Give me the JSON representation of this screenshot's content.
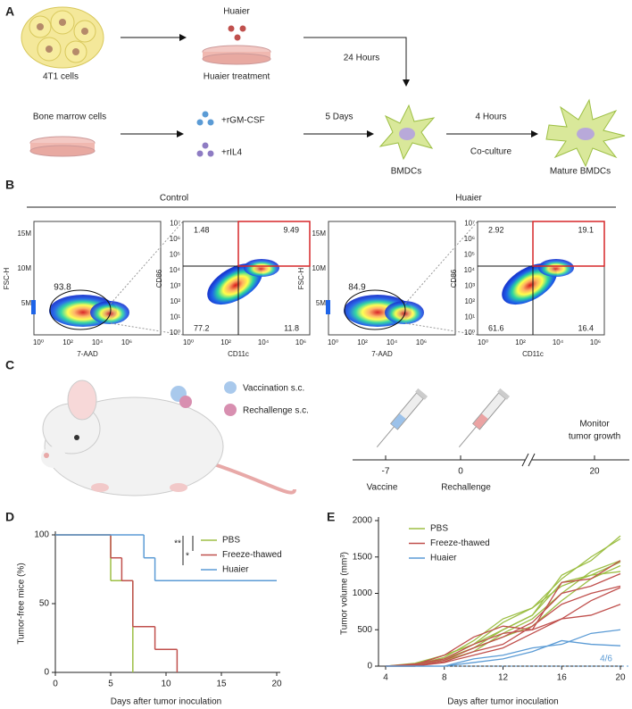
{
  "panel_a": {
    "label": "A",
    "cells": "4T1 cells",
    "drug": "Huaier",
    "treatment": "Huaier treatment",
    "time1": "24 Hours",
    "bone_marrow": "Bone marrow cells",
    "cytokine1": "+rGM-CSF",
    "cytokine2": "+rIL4",
    "time2": "5 Days",
    "bmdc": "BMDCs",
    "time3": "4 Hours",
    "coculture": "Co-culture",
    "mature": "Mature BMDCs"
  },
  "panel_b": {
    "label": "B",
    "groups": [
      {
        "name": "Control",
        "gate": 93.8,
        "quadrants": [
          1.48,
          9.49,
          77.2,
          11.8
        ]
      },
      {
        "name": "Huaier",
        "gate": 84.9,
        "quadrants": [
          2.92,
          19.1,
          61.6,
          16.4
        ]
      }
    ],
    "fsc": {
      "label": "FSC-H",
      "ticks": [
        "15M",
        "10M",
        "5M"
      ]
    },
    "aad": {
      "label": "7-AAD",
      "ticks": [
        "10⁰",
        "10²",
        "10⁴",
        "10⁶"
      ]
    },
    "cd86": {
      "label": "CD86",
      "ticks": [
        "10⁰",
        "10¹",
        "10²",
        "10³",
        "10⁴",
        "10⁵",
        "10⁶",
        "10⁷"
      ]
    },
    "cd11c": {
      "label": "CD11c",
      "ticks": [
        "10⁰",
        "10²",
        "10⁴",
        "10⁶"
      ]
    }
  },
  "panel_c": {
    "label": "C",
    "legend": [
      "Vaccination s.c.",
      "Rechallenge s.c."
    ],
    "timeline": [
      -7,
      0,
      20
    ],
    "events": [
      "Vaccine",
      "Rechallenge"
    ],
    "monitor": [
      "Monitor",
      "tumor growth"
    ]
  },
  "chart_data": [
    {
      "panel": "D",
      "type": "step",
      "xlabel": "Days after tumor inoculation",
      "ylabel": "Tumor-free mice (%)",
      "xlim": [
        0,
        20
      ],
      "ylim": [
        0,
        100
      ],
      "xticks": [
        0,
        5,
        10,
        15,
        20
      ],
      "yticks": [
        0,
        50,
        100
      ],
      "significance": [
        "**",
        "*"
      ],
      "series": [
        {
          "name": "PBS",
          "color": "#9dbf45",
          "x": [
            0,
            5,
            7
          ],
          "values": [
            100,
            66.7,
            0
          ]
        },
        {
          "name": "Freeze-thawed",
          "color": "#c0504d",
          "x": [
            0,
            5,
            6,
            7,
            9,
            11
          ],
          "values": [
            100,
            83.3,
            66.7,
            33.3,
            16.7,
            0
          ]
        },
        {
          "name": "Huaier",
          "color": "#5b9bd5",
          "x": [
            0,
            8,
            9,
            20
          ],
          "values": [
            100,
            83.3,
            66.7,
            66.7
          ]
        }
      ]
    },
    {
      "panel": "E",
      "type": "line",
      "xlabel": "Days after tumor inoculation",
      "ylabel": "Tumor volume (mm³)",
      "xlim": [
        4,
        20
      ],
      "ylim": [
        0,
        2000
      ],
      "xticks": [
        4,
        8,
        12,
        16,
        20
      ],
      "yticks": [
        0,
        500,
        1000,
        1500,
        2000
      ],
      "annotation": "4/6",
      "x": [
        4,
        6,
        8,
        10,
        12,
        14,
        16,
        18,
        20
      ],
      "series": [
        {
          "name": "PBS",
          "color": "#9dbf45",
          "lines": [
            [
              0,
              20,
              100,
              250,
              500,
              700,
              1250,
              1450,
              1790
            ],
            [
              0,
              30,
              150,
              300,
              600,
              800,
              1200,
              1500,
              1750
            ],
            [
              0,
              10,
              80,
              200,
              450,
              650,
              1000,
              1300,
              1450
            ],
            [
              0,
              20,
              120,
              350,
              650,
              800,
              1100,
              1250,
              1430
            ],
            [
              0,
              0,
              100,
              250,
              400,
              550,
              900,
              1200,
              1380
            ],
            [
              0,
              40,
              150,
              300,
              500,
              700,
              1150,
              1250,
              1300
            ]
          ]
        },
        {
          "name": "Freeze-thawed",
          "color": "#c0504d",
          "lines": [
            [
              0,
              20,
              150,
              400,
              550,
              500,
              1150,
              1200,
              1450
            ],
            [
              0,
              10,
              80,
              250,
              400,
              600,
              1000,
              1100,
              1270
            ],
            [
              0,
              0,
              60,
              200,
              300,
              550,
              850,
              1000,
              1100
            ],
            [
              0,
              30,
              100,
              300,
              450,
              500,
              650,
              900,
              1080
            ],
            [
              0,
              0,
              50,
              150,
              250,
              450,
              650,
              700,
              850
            ]
          ]
        },
        {
          "name": "Huaier",
          "color": "#5b9bd5",
          "lines": [
            [
              0,
              0,
              0,
              100,
              150,
              250,
              300,
              450,
              500
            ],
            [
              0,
              0,
              0,
              50,
              100,
              200,
              350,
              300,
              280
            ]
          ]
        }
      ]
    }
  ]
}
